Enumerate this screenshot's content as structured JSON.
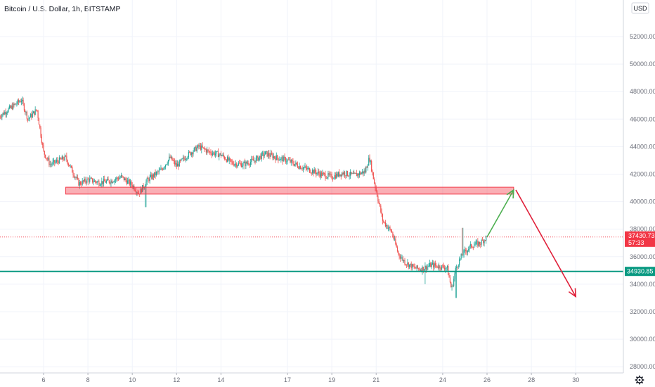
{
  "header": {
    "symbol_title": "Bitcoin / U.S. Dollar, 1h, BITSTAMP"
  },
  "price_axis": {
    "currency_label": "USD",
    "ticks": [
      "52000.00",
      "50000.00",
      "48000.00",
      "46000.00",
      "44000.00",
      "42000.00",
      "40000.00",
      "38000.00",
      "36000.00",
      "34000.00",
      "32000.00",
      "30000.00",
      "28000.00"
    ]
  },
  "time_axis": {
    "ticks": [
      "6",
      "8",
      "10",
      "12",
      "14",
      "17",
      "19",
      "21",
      "24",
      "26",
      "28",
      "30"
    ]
  },
  "current_price": {
    "price": "37430.73",
    "countdown": "57:33",
    "color": "#f23645"
  },
  "support_line": {
    "price_label": "34930.85",
    "color": "#089981"
  },
  "colors": {
    "up": "#26a69a",
    "down": "#ef5350",
    "resistance_zone": "#f23645",
    "bull_arrow": "#4caf50",
    "bear_arrow": "#e0203a",
    "grid": "#f0f3fa"
  },
  "chart_data": {
    "type": "candlestick",
    "title": "Bitcoin / U.S. Dollar, 1h, BITSTAMP",
    "xlabel": "",
    "ylabel": "",
    "x_tick_labels": [
      "6",
      "8",
      "10",
      "12",
      "14",
      "17",
      "19",
      "21",
      "24",
      "26",
      "28",
      "30"
    ],
    "ylim": [
      26500,
      53000
    ],
    "y_tick_values": [
      28000,
      30000,
      32000,
      34000,
      36000,
      38000,
      40000,
      42000,
      44000,
      46000,
      48000,
      50000,
      52000
    ],
    "series": [
      {
        "kind": "close_path",
        "points": [
          {
            "x": "4",
            "y": 46200
          },
          {
            "x": "4.5",
            "y": 46800
          },
          {
            "x": "5",
            "y": 47400
          },
          {
            "x": "5.3",
            "y": 46000
          },
          {
            "x": "5.7",
            "y": 46700
          },
          {
            "x": "6",
            "y": 43600
          },
          {
            "x": "6.3",
            "y": 42700
          },
          {
            "x": "6.7",
            "y": 43000
          },
          {
            "x": "7",
            "y": 43200
          },
          {
            "x": "7.3",
            "y": 42200
          },
          {
            "x": "7.6",
            "y": 41300
          },
          {
            "x": "8",
            "y": 41600
          },
          {
            "x": "8.5",
            "y": 41400
          },
          {
            "x": "9",
            "y": 41500
          },
          {
            "x": "9.5",
            "y": 41800
          },
          {
            "x": "10",
            "y": 41200
          },
          {
            "x": "10.3",
            "y": 40600
          },
          {
            "x": "10.7",
            "y": 41600
          },
          {
            "x": "11.3",
            "y": 42300
          },
          {
            "x": "11.7",
            "y": 43200
          },
          {
            "x": "12",
            "y": 42600
          },
          {
            "x": "12.5",
            "y": 43400
          },
          {
            "x": "13",
            "y": 44000
          },
          {
            "x": "13.5",
            "y": 43600
          },
          {
            "x": "14",
            "y": 43400
          },
          {
            "x": "14.5",
            "y": 42800
          },
          {
            "x": "15",
            "y": 42700
          },
          {
            "x": "15.5",
            "y": 43000
          },
          {
            "x": "16",
            "y": 43500
          },
          {
            "x": "16.5",
            "y": 43200
          },
          {
            "x": "17",
            "y": 43000
          },
          {
            "x": "17.5",
            "y": 42600
          },
          {
            "x": "18",
            "y": 42300
          },
          {
            "x": "18.5",
            "y": 42000
          },
          {
            "x": "19",
            "y": 41800
          },
          {
            "x": "19.5",
            "y": 42100
          },
          {
            "x": "20",
            "y": 41900
          },
          {
            "x": "20.5",
            "y": 42200
          },
          {
            "x": "20.7",
            "y": 43200
          },
          {
            "x": "20.9",
            "y": 41500
          },
          {
            "x": "21",
            "y": 40800
          },
          {
            "x": "21.3",
            "y": 38600
          },
          {
            "x": "21.7",
            "y": 37800
          },
          {
            "x": "22",
            "y": 36200
          },
          {
            "x": "22.3",
            "y": 35600
          },
          {
            "x": "22.7",
            "y": 35200
          },
          {
            "x": "23",
            "y": 35100
          },
          {
            "x": "23.5",
            "y": 35400
          },
          {
            "x": "23.8",
            "y": 35300
          },
          {
            "x": "24.2",
            "y": 35200
          },
          {
            "x": "24.4",
            "y": 33600
          },
          {
            "x": "24.6",
            "y": 35200
          },
          {
            "x": "24.9",
            "y": 36200
          },
          {
            "x": "25.3",
            "y": 36800
          },
          {
            "x": "25.7",
            "y": 37000
          },
          {
            "x": "26",
            "y": 37430
          }
        ]
      }
    ],
    "annotations": [
      {
        "type": "resistance_zone",
        "from": "7",
        "to": "27.2",
        "y_low": 40550,
        "y_high": 41050
      },
      {
        "type": "horizontal_line",
        "y": 34930.85,
        "label": "34930.85"
      },
      {
        "type": "arrow",
        "direction": "up",
        "from": {
          "x": "26",
          "y": 37430
        },
        "to": {
          "x": "27.2",
          "y": 40850
        }
      },
      {
        "type": "arrow",
        "direction": "down",
        "from": {
          "x": "27.3",
          "y": 40850
        },
        "to": {
          "x": "30",
          "y": 33100
        }
      }
    ]
  }
}
